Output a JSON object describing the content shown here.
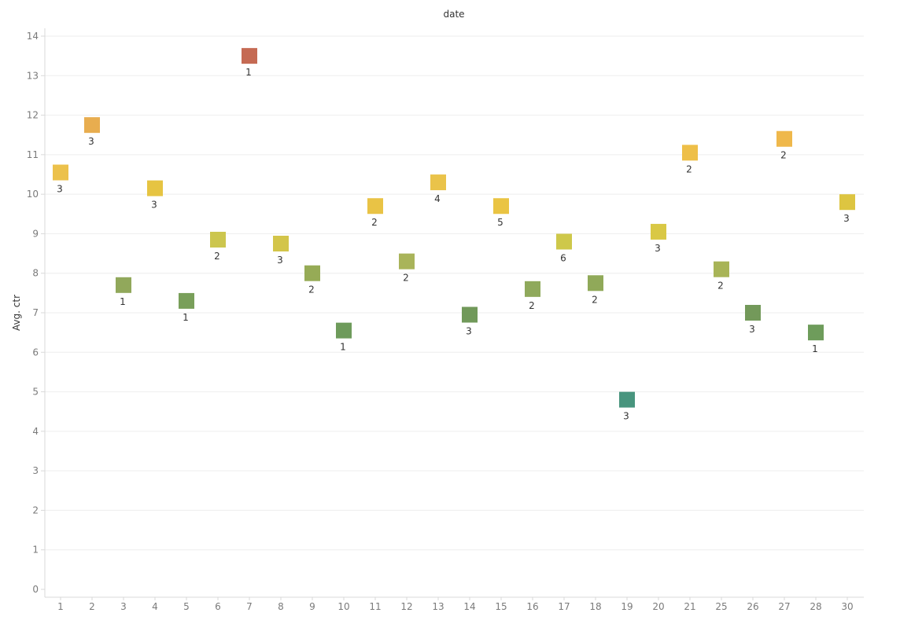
{
  "chart_data": {
    "type": "scatter",
    "title": "",
    "xlabel": "date",
    "ylabel": "Avg. ctr",
    "ylim": [
      0,
      14
    ],
    "yticks": [
      0,
      1,
      2,
      3,
      4,
      5,
      6,
      7,
      8,
      9,
      10,
      11,
      12,
      13,
      14
    ],
    "grid": "horizontal",
    "mark_shape": "square",
    "categories": [
      "1",
      "2",
      "3",
      "4",
      "5",
      "6",
      "7",
      "8",
      "9",
      "10",
      "11",
      "12",
      "13",
      "14",
      "15",
      "16",
      "17",
      "18",
      "19",
      "20",
      "21",
      "25",
      "26",
      "27",
      "28",
      "30"
    ],
    "values": [
      10.55,
      11.75,
      7.7,
      10.15,
      7.3,
      8.85,
      13.5,
      8.75,
      8.0,
      6.55,
      9.7,
      8.3,
      10.3,
      6.95,
      9.7,
      7.6,
      8.8,
      7.75,
      4.8,
      9.05,
      11.05,
      8.1,
      7.0,
      11.4,
      6.5,
      9.8
    ],
    "labels": [
      "3",
      "3",
      "1",
      "3",
      "1",
      "2",
      "1",
      "3",
      "2",
      "1",
      "2",
      "2",
      "4",
      "3",
      "5",
      "2",
      "6",
      "2",
      "3",
      "3",
      "2",
      "2",
      "3",
      "2",
      "1",
      "3"
    ],
    "colors": [
      "#ecc14b",
      "#e8ad4f",
      "#91a85b",
      "#e6c442",
      "#799f5a",
      "#ccc64e",
      "#c56a53",
      "#d3c54a",
      "#96ab56",
      "#6e9b5b",
      "#e9c345",
      "#a9b45a",
      "#eac34a",
      "#71995a",
      "#eac443",
      "#8fa95b",
      "#cec84a",
      "#90a959",
      "#48957e",
      "#d9c845",
      "#eebf48",
      "#a8b457",
      "#73995a",
      "#efb84b",
      "#6e9c5b",
      "#ddc541"
    ]
  }
}
